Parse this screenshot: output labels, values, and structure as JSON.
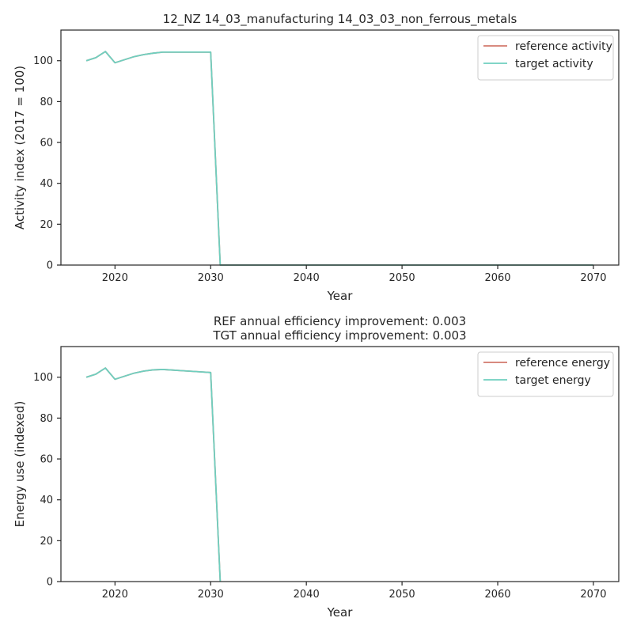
{
  "chart_data": [
    {
      "type": "line",
      "title": "12_NZ 14_03_manufacturing 14_03_03_non_ferrous_metals",
      "xlabel": "Year",
      "ylabel": "Activity index (2017 = 100)",
      "xlim": [
        2014.35,
        2072.65
      ],
      "ylim": [
        0,
        115
      ],
      "xticks": [
        2020,
        2030,
        2040,
        2050,
        2060,
        2070
      ],
      "yticks": [
        0,
        20,
        40,
        60,
        80,
        100
      ],
      "grid": false,
      "legend_position": "top-right",
      "series": [
        {
          "name": "reference activity",
          "color": "#d27a6d",
          "x": [
            2017,
            2018,
            2019,
            2020,
            2021,
            2022,
            2023,
            2024,
            2025,
            2026,
            2027,
            2028,
            2029,
            2030,
            2031,
            2032,
            2040,
            2050,
            2060,
            2070
          ],
          "y": [
            100,
            101.5,
            104.5,
            99,
            100.5,
            102,
            103,
            103.7,
            104.2,
            104.2,
            104.2,
            104.2,
            104.2,
            104.2,
            0,
            0,
            0,
            0,
            0,
            0
          ]
        },
        {
          "name": "target activity",
          "color": "#6fcfbf",
          "x": [
            2017,
            2018,
            2019,
            2020,
            2021,
            2022,
            2023,
            2024,
            2025,
            2026,
            2027,
            2028,
            2029,
            2030,
            2031,
            2032,
            2040,
            2050,
            2060,
            2070
          ],
          "y": [
            100,
            101.5,
            104.5,
            99,
            100.5,
            102,
            103,
            103.7,
            104.2,
            104.2,
            104.2,
            104.2,
            104.2,
            104.2,
            0,
            0,
            0,
            0,
            0,
            0
          ]
        }
      ]
    },
    {
      "type": "line",
      "title": "REF annual efficiency improvement: 0.003",
      "subtitle": "TGT annual efficiency improvement: 0.003",
      "xlabel": "Year",
      "ylabel": "Energy use (indexed)",
      "xlim": [
        2014.35,
        2072.65
      ],
      "ylim": [
        0,
        115
      ],
      "xticks": [
        2020,
        2030,
        2040,
        2050,
        2060,
        2070
      ],
      "yticks": [
        0,
        20,
        40,
        60,
        80,
        100
      ],
      "grid": false,
      "legend_position": "top-right",
      "series": [
        {
          "name": "reference energy",
          "color": "#d27a6d",
          "x": [
            2017,
            2018,
            2019,
            2020,
            2021,
            2022,
            2023,
            2024,
            2025,
            2026,
            2027,
            2028,
            2029,
            2030,
            2031
          ],
          "y": [
            100,
            101.5,
            104.5,
            99,
            100.5,
            102,
            103,
            103.6,
            103.8,
            103.5,
            103.2,
            102.9,
            102.6,
            102.3,
            0
          ]
        },
        {
          "name": "target energy",
          "color": "#6fcfbf",
          "x": [
            2017,
            2018,
            2019,
            2020,
            2021,
            2022,
            2023,
            2024,
            2025,
            2026,
            2027,
            2028,
            2029,
            2030,
            2031
          ],
          "y": [
            100,
            101.5,
            104.5,
            99,
            100.5,
            102,
            103,
            103.6,
            103.8,
            103.5,
            103.2,
            102.9,
            102.6,
            102.3,
            0
          ]
        }
      ]
    }
  ]
}
